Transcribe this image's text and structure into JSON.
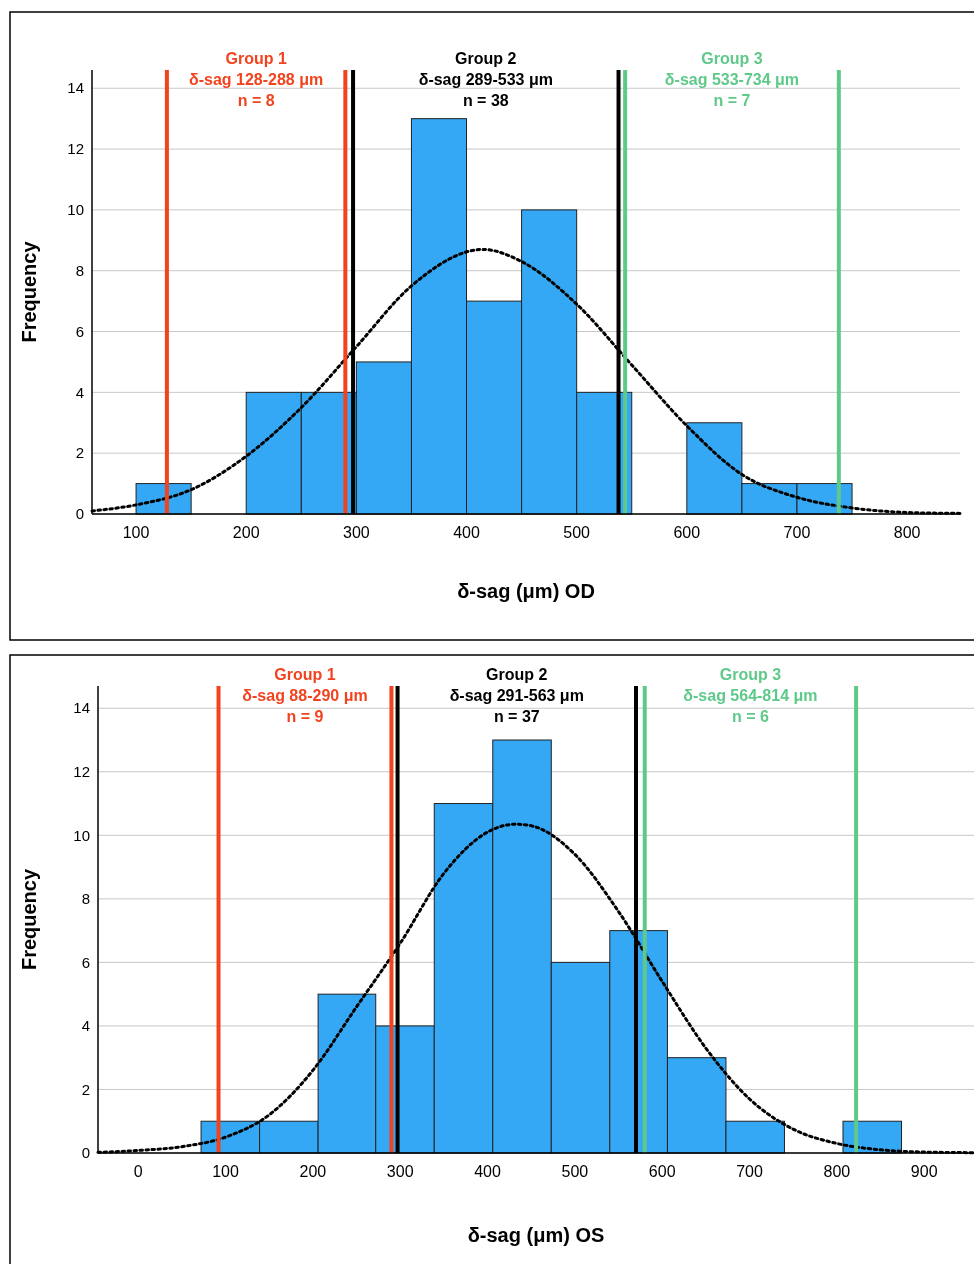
{
  "chart_data": [
    {
      "type": "histogram",
      "xlabel": "δ-sag (μm) OD",
      "ylabel": "Frequency",
      "bins": [
        100,
        150,
        200,
        250,
        300,
        350,
        400,
        450,
        500,
        550,
        600,
        650,
        700,
        750
      ],
      "values": [
        1,
        0,
        4,
        4,
        5,
        13,
        7,
        10,
        4,
        0,
        3,
        1,
        1
      ],
      "color": "#35a8f5",
      "xlim": [
        60,
        848
      ],
      "xticks": [
        100,
        200,
        300,
        400,
        500,
        600,
        700,
        800
      ],
      "ylim": [
        0,
        14.6
      ],
      "yticks": [
        0,
        2,
        4,
        6,
        8,
        10,
        12,
        14
      ],
      "grid": "y",
      "line_style": "dotted",
      "series": [
        {
          "type": "line",
          "color": "#000000",
          "x": [
            60,
            100,
            150,
            200,
            250,
            300,
            350,
            415,
            450,
            500,
            550,
            600,
            650,
            700,
            750,
            800,
            848
          ],
          "values": [
            0.1,
            0.3,
            0.8,
            1.9,
            3.5,
            5.5,
            7.5,
            8.7,
            8.3,
            6.9,
            4.9,
            2.9,
            1.3,
            0.55,
            0.2,
            0.05,
            0.02
          ]
        }
      ],
      "ref_lines": [
        {
          "axis": "x",
          "value": 128,
          "color": "#f2431f"
        },
        {
          "axis": "x",
          "value": 290,
          "color": "#f2431f"
        },
        {
          "axis": "x",
          "value": 297,
          "color": "#000000"
        },
        {
          "axis": "x",
          "value": 538,
          "color": "#000000"
        },
        {
          "axis": "x",
          "value": 544,
          "color": "#5fc98a"
        },
        {
          "axis": "x",
          "value": 738,
          "color": "#5fc98a"
        }
      ],
      "annotations": [
        "Group 1\nδ-sag 128-288 μm\nn = 8",
        "Group 2\nδ-sag 289-533 μm\nn = 38",
        "Group 3\nδ-sag 533-734 μm\nn = 7"
      ]
    },
    {
      "type": "histogram",
      "xlabel": "δ-sag (μm) OS",
      "ylabel": "Frequency",
      "bins": [
        72,
        139,
        206,
        272,
        339,
        406,
        473,
        540,
        606,
        673,
        740,
        807,
        874
      ],
      "values": [
        1,
        1,
        5,
        4,
        11,
        13,
        6,
        7,
        3,
        1,
        0,
        1
      ],
      "color": "#35a8f5",
      "xlim": [
        -46,
        957
      ],
      "xticks": [
        0,
        100,
        200,
        300,
        400,
        500,
        600,
        700,
        800,
        900
      ],
      "ylim": [
        0,
        14.7
      ],
      "yticks": [
        0,
        2,
        4,
        6,
        8,
        10,
        12,
        14
      ],
      "grid": "y",
      "line_style": "dotted",
      "series": [
        {
          "type": "line",
          "color": "#000000",
          "x": [
            -46,
            0,
            50,
            100,
            150,
            200,
            250,
            300,
            350,
            400,
            432,
            450,
            500,
            550,
            600,
            650,
            700,
            750,
            800,
            850,
            900,
            957
          ],
          "values": [
            0.02,
            0.08,
            0.2,
            0.5,
            1.2,
            2.6,
            4.6,
            6.6,
            8.8,
            10.1,
            10.35,
            10.3,
            9.4,
            7.6,
            5.4,
            3.3,
            1.7,
            0.75,
            0.3,
            0.1,
            0.03,
            0.01
          ]
        }
      ],
      "ref_lines": [
        {
          "axis": "x",
          "value": 92,
          "color": "#f2431f"
        },
        {
          "axis": "x",
          "value": 290,
          "color": "#f2431f"
        },
        {
          "axis": "x",
          "value": 297,
          "color": "#000000"
        },
        {
          "axis": "x",
          "value": 570,
          "color": "#000000"
        },
        {
          "axis": "x",
          "value": 580,
          "color": "#5fc98a"
        },
        {
          "axis": "x",
          "value": 822,
          "color": "#5fc98a"
        }
      ],
      "annotations": [
        "Group 1\nδ-sag 88-290 μm\nn = 9",
        "Group 2\nδ-sag 291-563 μm\nn = 37",
        "Group 3\nδ-sag 564-814 μm\nn = 6"
      ]
    }
  ]
}
